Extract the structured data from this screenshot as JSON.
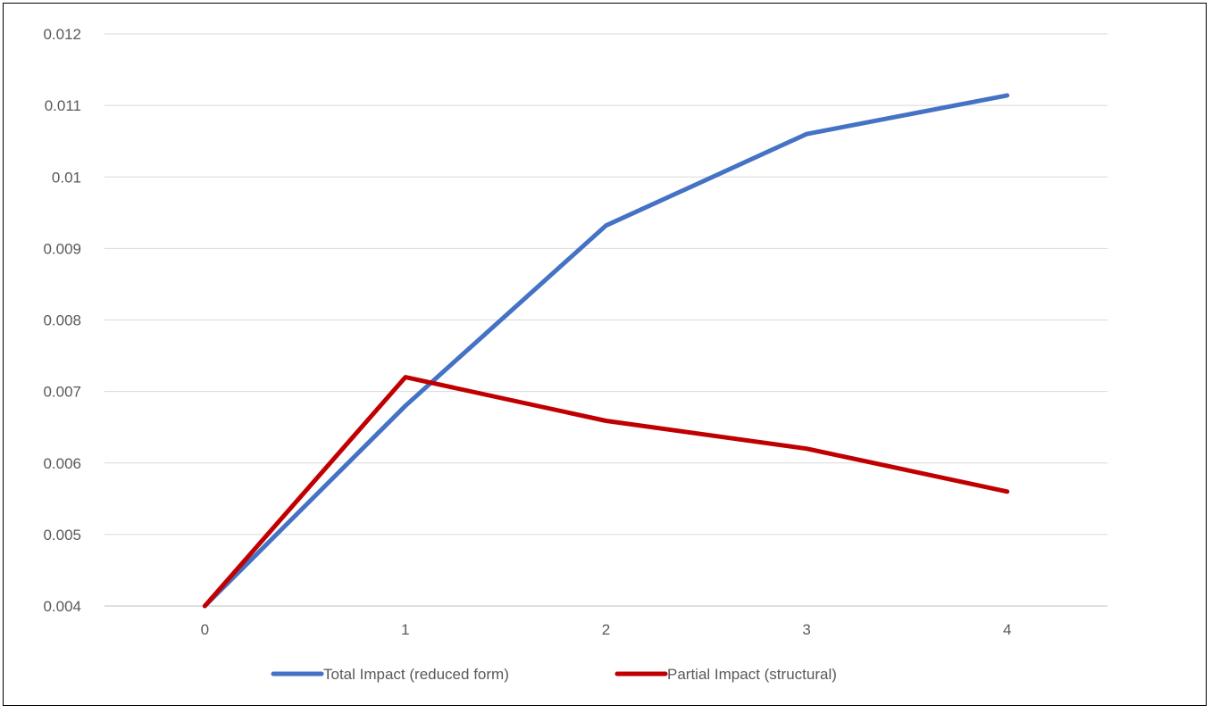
{
  "chart_data": {
    "type": "line",
    "title": "",
    "xlabel": "",
    "ylabel": "",
    "categories": [
      "0",
      "1",
      "2",
      "3",
      "4"
    ],
    "x": [
      0,
      1,
      2,
      3,
      4
    ],
    "ylim": [
      0.004,
      0.012
    ],
    "yticks": [
      "0.004",
      "0.005",
      "0.006",
      "0.007",
      "0.008",
      "0.009",
      "0.01",
      "0.011",
      "0.012"
    ],
    "grid": true,
    "legend_position": "bottom",
    "series": [
      {
        "name": "Total Impact (reduced form)",
        "color": "#4472c4",
        "values": [
          0.004,
          0.0068,
          0.00932,
          0.0106,
          0.01114
        ]
      },
      {
        "name": "Partial Impact (structural)",
        "color": "#c00000",
        "values": [
          0.004,
          0.0072,
          0.00659,
          0.0062,
          0.0056
        ]
      }
    ]
  }
}
